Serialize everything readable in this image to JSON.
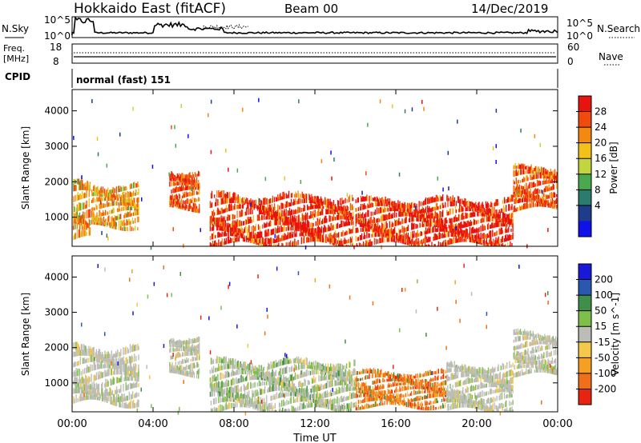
{
  "header": {
    "title": "Hokkaido East (fitACF)",
    "beam": "Beam 00",
    "date": "14/Dec/2019"
  },
  "noise_panel": {
    "left_label": "N.Sky",
    "right_label": "N.Search",
    "left_ticks": [
      "10^5",
      "10^0"
    ],
    "right_ticks": [
      "10^5",
      "10^0"
    ]
  },
  "freq_panel": {
    "left_label_1": "Freq.",
    "left_label_2": "[MHz]",
    "left_ticks": [
      "18",
      "8"
    ],
    "right_label": "Nave",
    "right_ticks": [
      "60",
      "0"
    ]
  },
  "cpid": {
    "label": "CPID",
    "value": "normal (fast) 151"
  },
  "chart_data": [
    {
      "type": "heatmap",
      "name": "power",
      "ylabel": "Slant Range [km]",
      "ylim": [
        180,
        4600
      ],
      "yticks": [
        "1000",
        "2000",
        "3000",
        "4000"
      ],
      "x": [
        "00:00",
        "04:00",
        "08:00",
        "12:00",
        "16:00",
        "20:00",
        "00:00"
      ],
      "xlim_hours": [
        0,
        24
      ],
      "colorbar": {
        "label": "Power [dB]",
        "ticks": [
          "28",
          "24",
          "20",
          "16",
          "12",
          "8",
          "4"
        ],
        "colors": [
          "#e8120e",
          "#f24a0e",
          "#f4890f",
          "#f2c21a",
          "#c4d43e",
          "#4aa94e",
          "#2d7a6e",
          "#1e3c8a",
          "#1010e8"
        ]
      },
      "regions": [
        {
          "t0": 0.05,
          "t1": 0.9,
          "r0": 350,
          "r1": 2000,
          "level": "mixed-orange"
        },
        {
          "t0": 0.95,
          "t1": 3.3,
          "r0": 700,
          "r1": 1900,
          "level": "mixed-orange"
        },
        {
          "t0": 4.8,
          "t1": 6.3,
          "r0": 1200,
          "r1": 2300,
          "level": "orange-red"
        },
        {
          "t0": 6.8,
          "t1": 13.9,
          "r0": 200,
          "r1": 1600,
          "level": "red"
        },
        {
          "t0": 14.0,
          "t1": 21.8,
          "r0": 200,
          "r1": 1500,
          "level": "red"
        },
        {
          "t0": 21.8,
          "t1": 24.0,
          "r0": 1200,
          "r1": 2400,
          "level": "orange-red"
        }
      ]
    },
    {
      "type": "heatmap",
      "name": "velocity",
      "ylabel": "Slant Range [km]",
      "ylim": [
        180,
        4600
      ],
      "yticks": [
        "1000",
        "2000",
        "3000",
        "4000"
      ],
      "x": [
        "00:00",
        "04:00",
        "08:00",
        "12:00",
        "16:00",
        "20:00",
        "00:00"
      ],
      "xlabel": "Time UT",
      "xlim_hours": [
        0,
        24
      ],
      "colorbar": {
        "label": "Velocity [m s^-1]",
        "ticks": [
          "200",
          "100",
          "50",
          "15",
          "-15",
          "-50",
          "-100",
          "-200"
        ],
        "colors": [
          "#1818d8",
          "#2a58b0",
          "#3f8f4a",
          "#7cc04a",
          "#bdbdb8",
          "#f5c84a",
          "#f5a023",
          "#f06f18",
          "#e82410"
        ]
      },
      "regions": [
        {
          "t0": 0.05,
          "t1": 3.3,
          "r0": 400,
          "r1": 2000,
          "level": "grey"
        },
        {
          "t0": 4.8,
          "t1": 6.3,
          "r0": 1200,
          "r1": 2300,
          "level": "grey"
        },
        {
          "t0": 6.8,
          "t1": 14.0,
          "r0": 200,
          "r1": 1600,
          "level": "grey-green"
        },
        {
          "t0": 14.0,
          "t1": 18.5,
          "r0": 300,
          "r1": 1300,
          "level": "orange-red"
        },
        {
          "t0": 18.5,
          "t1": 21.8,
          "r0": 200,
          "r1": 1500,
          "level": "grey"
        },
        {
          "t0": 21.8,
          "t1": 24.0,
          "r0": 1200,
          "r1": 2400,
          "level": "grey"
        }
      ]
    }
  ]
}
